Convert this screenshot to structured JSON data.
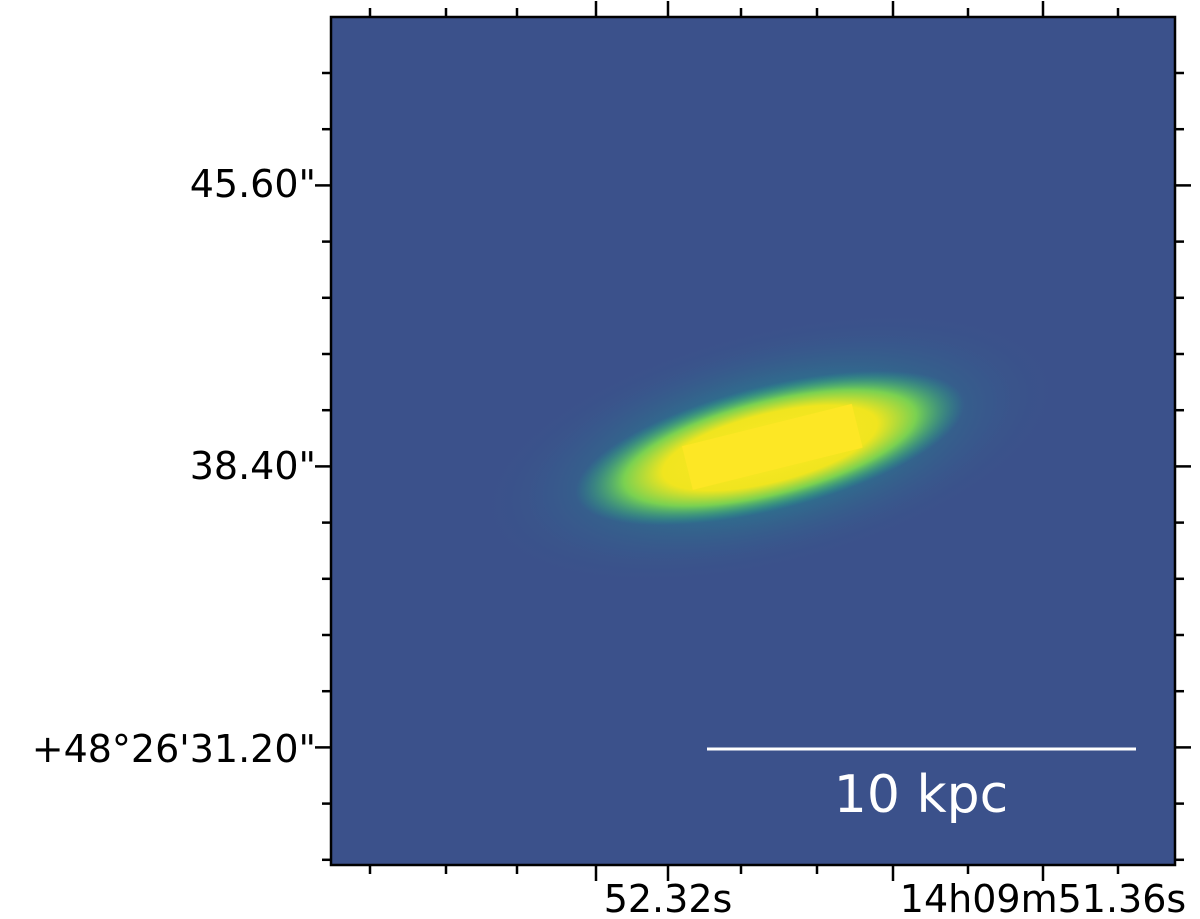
{
  "axes": {
    "yticks": [
      "45.60\"",
      "38.40\"",
      "+48°26'31.20\""
    ],
    "xticks": [
      "52.32s",
      "14h09m51.36s"
    ]
  },
  "scalebar": {
    "label": "10 kpc"
  }
}
